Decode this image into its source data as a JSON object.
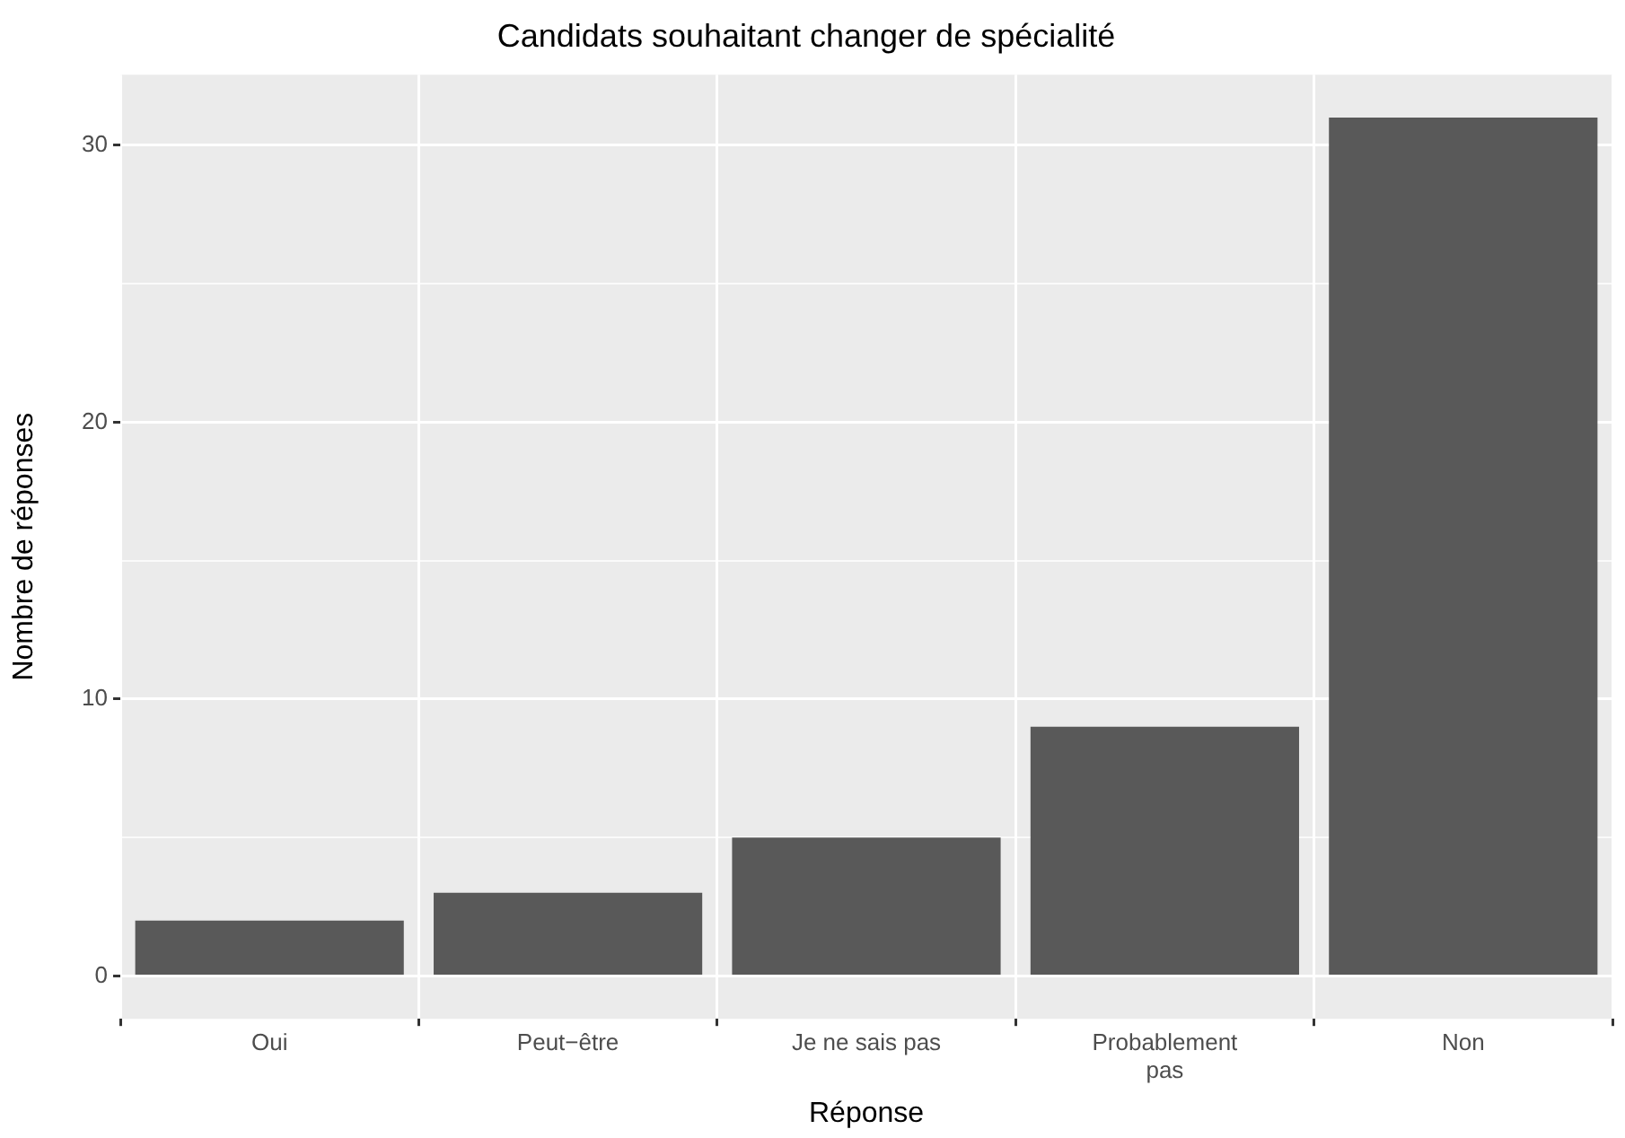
{
  "chart_data": {
    "type": "bar",
    "title": "Candidats souhaitant changer de spécialité",
    "xlabel": "Réponse",
    "ylabel": "Nombre de réponses",
    "categories": [
      "Oui",
      "Peut−être",
      "Je ne sais pas",
      "Probablement pas",
      "Non"
    ],
    "values": [
      2,
      3,
      5,
      9,
      31
    ],
    "color": "#595959",
    "ylim": [
      -1.55,
      32.55
    ],
    "yticks": [
      0,
      {
        "value": 5,
        "label": null
      },
      10,
      {
        "value": 15,
        "label": null
      },
      20,
      {
        "value": 25,
        "label": null
      },
      30
    ],
    "grid": true,
    "legend": false
  }
}
